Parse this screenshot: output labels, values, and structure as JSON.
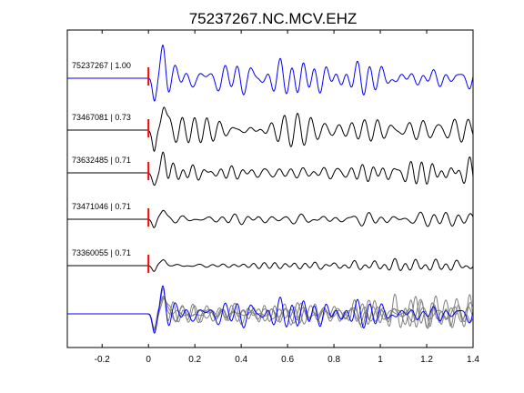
{
  "chart_data": {
    "type": "line",
    "title": "75237267.NC.MCV.EHZ",
    "xlabel": "",
    "ylabel": "",
    "xlim": [
      -0.35,
      1.4
    ],
    "xticks": [
      -0.2,
      0,
      0.2,
      0.4,
      0.6,
      0.8,
      1,
      1.2,
      1.4
    ],
    "xtick_labels": [
      "-0.2",
      "0",
      "0.2",
      "0.4",
      "0.6",
      "0.8",
      "1",
      "1.2",
      "1.4"
    ],
    "grid": false,
    "pick_time": 0,
    "traces": [
      {
        "label": "75237267 | 1.00",
        "event_id": "75237267",
        "correlation": 1.0,
        "color": "#0000ff",
        "amplitude": 1.0,
        "seed": 1
      },
      {
        "label": "73467081 | 0.73",
        "event_id": "73467081",
        "correlation": 0.73,
        "color": "#000000",
        "amplitude": 1.0,
        "seed": 2
      },
      {
        "label": "73632485 | 0.71",
        "event_id": "73632485",
        "correlation": 0.71,
        "color": "#000000",
        "amplitude": 0.75,
        "seed": 3
      },
      {
        "label": "73471046 | 0.71",
        "event_id": "73471046",
        "correlation": 0.71,
        "color": "#000000",
        "amplitude": 0.55,
        "seed": 4
      },
      {
        "label": "73360055 | 0.71",
        "event_id": "73360055",
        "correlation": 0.71,
        "color": "#000000",
        "amplitude": 0.45,
        "seed": 5
      }
    ],
    "stack": {
      "reference_color": "#0000ff",
      "overlay_color": "#808080"
    },
    "pick_marker_color": "#ff0000"
  }
}
